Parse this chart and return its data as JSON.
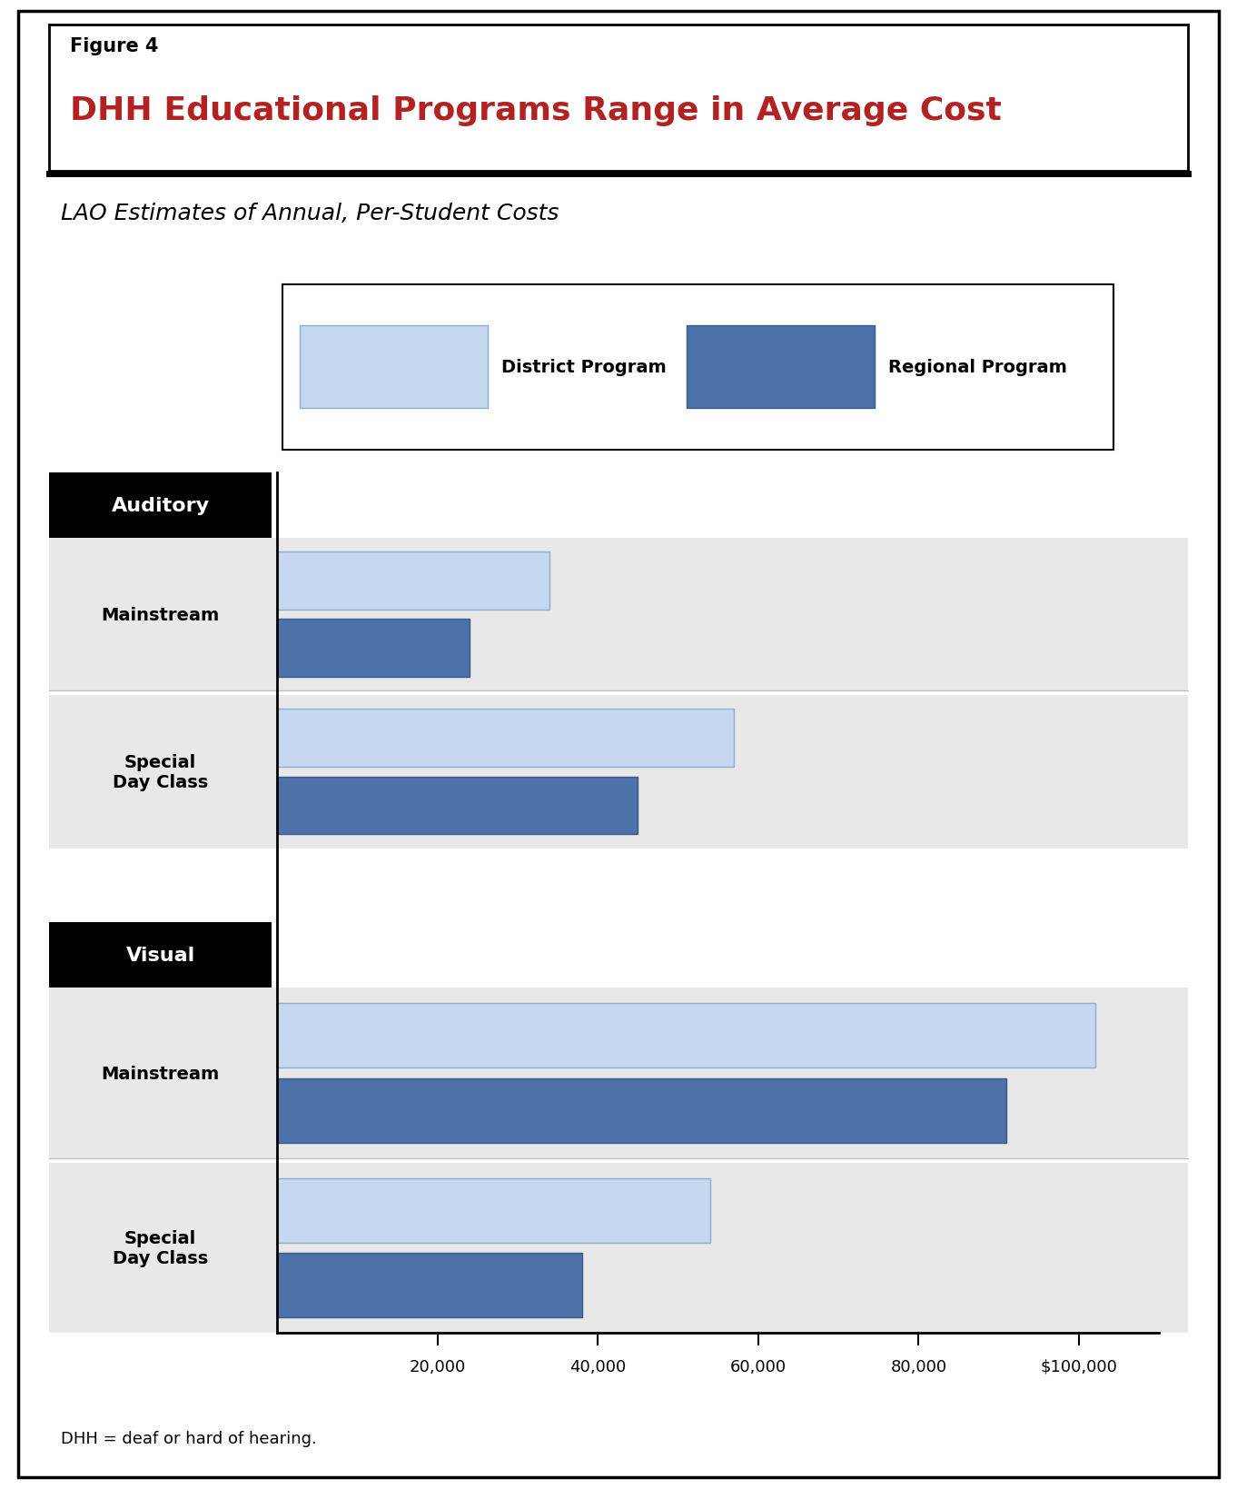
{
  "title_label": "Figure 4",
  "title_main": "DHH Educational Programs Range in Average Cost",
  "subtitle": "LAO Estimates of Annual, Per-Student Costs",
  "footnote": "DHH = deaf or hard of hearing.",
  "legend_labels": [
    "District Program",
    "Regional Program"
  ],
  "district_color": "#c5d8f0",
  "regional_color": "#4d72aa",
  "district_border": "#8aafcf",
  "regional_border": "#3a5a8a",
  "categories": [
    {
      "group": "Auditory",
      "label": "Mainstream",
      "district": 34000,
      "regional": 24000
    },
    {
      "group": "Auditory",
      "label": "Special\nDay Class",
      "district": 57000,
      "regional": 45000
    },
    {
      "group": "Visual",
      "label": "Mainstream",
      "district": 102000,
      "regional": 91000
    },
    {
      "group": "Visual",
      "label": "Special\nDay Class",
      "district": 54000,
      "regional": 38000
    }
  ],
  "xmax": 110000,
  "xticks": [
    20000,
    40000,
    60000,
    80000,
    100000
  ],
  "xticklabels": [
    "20,000",
    "40,000",
    "60,000",
    "80,000",
    "$100,000"
  ],
  "section_bg_dark": "#e8e8e8",
  "section_bg_light": "#f0f0f0",
  "outer_bg": "#ffffff",
  "header_bg": "#000000",
  "header_fg": "#ffffff",
  "title_color": "#b22222",
  "title_label_color": "#000000",
  "subtitle_color": "#000000"
}
